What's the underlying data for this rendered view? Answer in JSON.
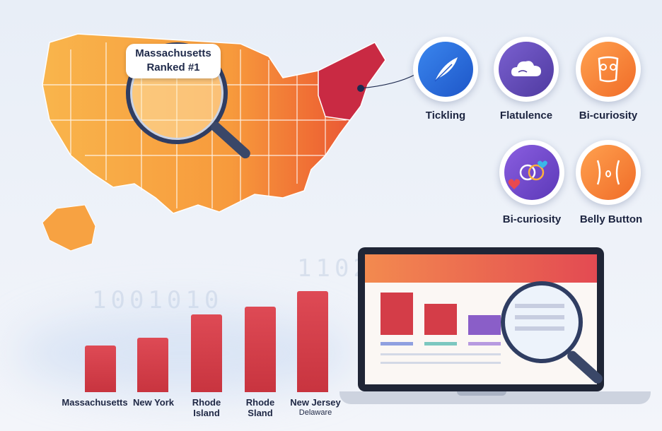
{
  "magnifier": {
    "line1": "Massachusetts",
    "line2": "Ranked #1"
  },
  "icons": [
    {
      "name": "feather-icon",
      "label": "Tickling",
      "color": "#2f6fd8"
    },
    {
      "name": "cloud-icon",
      "label": "Flatulence",
      "color": "#6a4fb8"
    },
    {
      "name": "torso-icon",
      "label": "Bi-curiosity",
      "color": "#f5893f"
    },
    {
      "name": "hearts-icon",
      "label": "Bi-curiosity",
      "color": "#7b4fd0"
    },
    {
      "name": "belly-icon",
      "label": "Belly Button",
      "color": "#f5893f"
    }
  ],
  "chart_data": {
    "type": "bar",
    "categories": [
      "Massachusetts",
      "New York",
      "Rhode Island",
      "Rhode Sland",
      "New Jersey"
    ],
    "category_notes": [
      "",
      "",
      "",
      "",
      "Delaware"
    ],
    "values": [
      3,
      3.5,
      5,
      5.5,
      6.5
    ]
  },
  "bars": {
    "labels": [
      "Massachusetts",
      "New York",
      "Rhode",
      "Rhode",
      "New Jersey"
    ],
    "labels2": [
      "",
      "",
      "Island",
      "Sland",
      "Delaware"
    ]
  },
  "colors": {
    "accent": "#e0414f",
    "map_orange": "#f7a242",
    "map_red": "#c8283c"
  }
}
